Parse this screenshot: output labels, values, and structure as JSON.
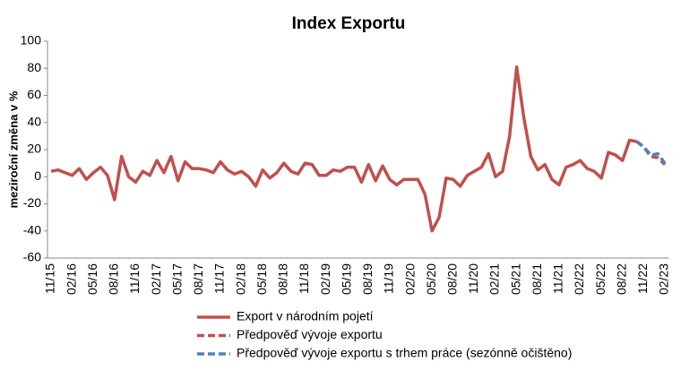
{
  "chart_data": {
    "type": "line",
    "title": "Index Exportu",
    "y_label": "meziroční změna v %",
    "categories": [
      "11/15",
      null,
      null,
      "02/16",
      null,
      null,
      "05/16",
      null,
      null,
      "08/16",
      null,
      null,
      "11/16",
      null,
      null,
      "02/17",
      null,
      null,
      "05/17",
      null,
      null,
      "08/17",
      null,
      null,
      "11/17",
      null,
      null,
      "02/18",
      null,
      null,
      "05/18",
      null,
      null,
      "08/18",
      null,
      null,
      "11/18",
      null,
      null,
      "02/19",
      null,
      null,
      "05/19",
      null,
      null,
      "08/19",
      null,
      null,
      "11/19",
      null,
      null,
      "02/20",
      null,
      null,
      "05/20",
      null,
      null,
      "08/20",
      null,
      null,
      "11/20",
      null,
      null,
      "02/21",
      null,
      null,
      "05/21",
      null,
      null,
      "08/21",
      null,
      null,
      "11/21",
      null,
      null,
      "02/22",
      null,
      null,
      "05/22",
      null,
      null,
      "08/22",
      null,
      null,
      "11/22",
      null,
      null,
      "02/23"
    ],
    "series": [
      {
        "name": "Export v národním pojetí",
        "color": "#c0504d",
        "dashed": false,
        "values": [
          4,
          5,
          3,
          1,
          6,
          -2,
          3,
          7,
          1,
          -17,
          15,
          0,
          -4,
          4,
          1,
          12,
          3,
          15,
          -3,
          11,
          6,
          6,
          5,
          3,
          11,
          5,
          2,
          4,
          0,
          -7,
          5,
          -1,
          3,
          10,
          4,
          2,
          10,
          9,
          1,
          1,
          5,
          4,
          7,
          7,
          -4,
          9,
          -3,
          8,
          -2,
          -6,
          -2,
          -2,
          -2,
          -13,
          -40,
          -30,
          -1,
          -2,
          -7,
          1,
          4,
          7,
          17,
          0,
          4,
          30,
          81,
          44,
          15,
          5,
          9,
          -2,
          -6,
          7,
          9,
          12,
          6,
          4,
          -1,
          18,
          16,
          12,
          27,
          26,
          null,
          null,
          null,
          null
        ]
      },
      {
        "name": "Předpověď vývoje exportu",
        "color": "#c0504d",
        "dashed": true,
        "values": [
          null,
          null,
          null,
          null,
          null,
          null,
          null,
          null,
          null,
          null,
          null,
          null,
          null,
          null,
          null,
          null,
          null,
          null,
          null,
          null,
          null,
          null,
          null,
          null,
          null,
          null,
          null,
          null,
          null,
          null,
          null,
          null,
          null,
          null,
          null,
          null,
          null,
          null,
          null,
          null,
          null,
          null,
          null,
          null,
          null,
          null,
          null,
          null,
          null,
          null,
          null,
          null,
          null,
          null,
          null,
          null,
          null,
          null,
          null,
          null,
          null,
          null,
          null,
          null,
          null,
          null,
          null,
          null,
          null,
          null,
          null,
          null,
          null,
          null,
          null,
          null,
          null,
          null,
          null,
          null,
          null,
          null,
          null,
          26,
          22,
          15,
          14,
          9
        ]
      },
      {
        "name": "Předpověď vývoje exportu s trhem práce (sezónně očištěno)",
        "color": "#4f81bd",
        "dashed": true,
        "values": [
          null,
          null,
          null,
          null,
          null,
          null,
          null,
          null,
          null,
          null,
          null,
          null,
          null,
          null,
          null,
          null,
          null,
          null,
          null,
          null,
          null,
          null,
          null,
          null,
          null,
          null,
          null,
          null,
          null,
          null,
          null,
          null,
          null,
          null,
          null,
          null,
          null,
          null,
          null,
          null,
          null,
          null,
          null,
          null,
          null,
          null,
          null,
          null,
          null,
          null,
          null,
          null,
          null,
          null,
          null,
          null,
          null,
          null,
          null,
          null,
          null,
          null,
          null,
          null,
          null,
          null,
          null,
          null,
          null,
          null,
          null,
          null,
          null,
          null,
          null,
          null,
          null,
          null,
          null,
          null,
          null,
          null,
          null,
          26,
          22,
          16,
          17,
          10
        ]
      }
    ],
    "ylim": [
      -60,
      100
    ],
    "yticks": [
      -60,
      -40,
      -20,
      0,
      20,
      40,
      60,
      80,
      100
    ],
    "grid": false
  }
}
